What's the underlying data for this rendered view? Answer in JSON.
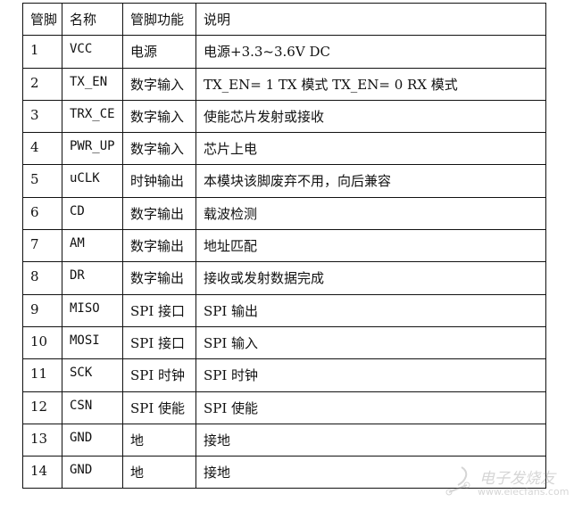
{
  "table": {
    "headers": [
      "管脚",
      "名称",
      "管脚功能",
      "说明"
    ],
    "rows": [
      [
        "1",
        "VCC",
        "电源",
        "电源+3.3~3.6V DC"
      ],
      [
        "2",
        "TX_EN",
        "数字输入",
        "TX_EN= 1 TX 模式 TX_EN= 0 RX 模式"
      ],
      [
        "3",
        "TRX_CE",
        "数字输入",
        "使能芯片发射或接收"
      ],
      [
        "4",
        "PWR_UP",
        "数字输入",
        "芯片上电"
      ],
      [
        "5",
        "uCLK",
        "时钟输出",
        "本模块该脚废弃不用，向后兼容"
      ],
      [
        "6",
        "CD",
        "数字输出",
        "载波检测"
      ],
      [
        "7",
        "AM",
        "数字输出",
        "地址匹配"
      ],
      [
        "8",
        "DR",
        "数字输出",
        "接收或发射数据完成"
      ],
      [
        "9",
        "MISO",
        "SPI 接口",
        "SPI 输出"
      ],
      [
        "10",
        "MOSI",
        "SPI 接口",
        "SPI 输入"
      ],
      [
        "11",
        "SCK",
        "SPI 时钟",
        "SPI 时钟"
      ],
      [
        "12",
        "CSN",
        "SPI 使能",
        "SPI 使能"
      ],
      [
        "13",
        "GND",
        "地",
        "接地"
      ],
      [
        "14",
        "GND",
        "地",
        "接地"
      ]
    ]
  },
  "watermark": {
    "name": "电子发烧友",
    "url": "www.elecfans.com"
  }
}
